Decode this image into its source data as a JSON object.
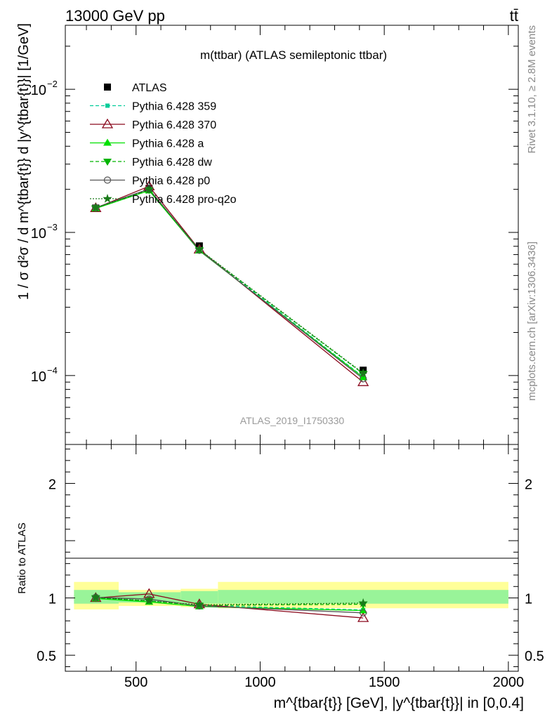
{
  "header": {
    "left": "13000 GeV pp",
    "right": "tt̄"
  },
  "side_labels": {
    "top": "Rivet 3.1.10, ≥ 2.8M events",
    "bottom": "mcplots.cern.ch [arXiv:1306.3436]"
  },
  "chart_data": [
    {
      "type": "line",
      "title": "m(ttbar) (ATLAS semileptonic ttbar)",
      "watermark": "ATLAS_2019_I1750330",
      "ylabel": "1 / σ d²σ / d m^{tbar{t}} d |y^{tbar{t}}| [1/GeV]",
      "yscale": "log",
      "xlim": [
        215,
        2040
      ],
      "ylim": [
        3.3e-05,
        0.028
      ],
      "yticks": [
        {
          "value": 0.0001,
          "label": "10",
          "exp": "−4"
        },
        {
          "value": 0.001,
          "label": "10",
          "exp": "−3"
        },
        {
          "value": 0.01,
          "label": "10",
          "exp": "−2"
        }
      ],
      "legend_position": "top-left",
      "series": [
        {
          "name": "ATLAS",
          "color": "#000000",
          "marker": "square",
          "dash": "none",
          "x": [
            337.5,
            552.5,
            755,
            1415
          ],
          "y": [
            0.00148,
            0.00203,
            0.000805,
            0.000109
          ]
        },
        {
          "name": "Pythia 6.428 359",
          "color": "#00cc99",
          "marker": "small-square",
          "dash": "dashed",
          "x": [
            337.5,
            552.5,
            755,
            1415
          ],
          "y": [
            0.00148,
            0.00198,
            0.000755,
            9.8e-05
          ]
        },
        {
          "name": "Pythia 6.428 370",
          "color": "#8b0a1e",
          "marker": "open-triangle",
          "dash": "solid",
          "x": [
            337.5,
            552.5,
            755,
            1415
          ],
          "y": [
            0.00148,
            0.0021,
            0.00076,
            9e-05
          ]
        },
        {
          "name": "Pythia 6.428 a",
          "color": "#00e000",
          "marker": "triangle",
          "dash": "solid",
          "x": [
            337.5,
            552.5,
            755,
            1415
          ],
          "y": [
            0.00147,
            0.00196,
            0.000745,
            9.7e-05
          ]
        },
        {
          "name": "Pythia 6.428 dw",
          "color": "#00b400",
          "marker": "triangle-down",
          "dash": "dashed",
          "x": [
            337.5,
            552.5,
            755,
            1415
          ],
          "y": [
            0.00148,
            0.00198,
            0.000755,
            0.000103
          ]
        },
        {
          "name": "Pythia 6.428 p0",
          "color": "#555555",
          "marker": "open-circle",
          "dash": "solid",
          "x": [
            337.5,
            552.5,
            755,
            1415
          ],
          "y": [
            0.00149,
            0.00201,
            0.00075,
            9.5e-05
          ]
        },
        {
          "name": "Pythia 6.428 pro-q2o",
          "color": "#1a7a1a",
          "marker": "star",
          "dash": "dotted",
          "x": [
            337.5,
            552.5,
            755,
            1415
          ],
          "y": [
            0.00149,
            0.00198,
            0.00076,
            0.000104
          ]
        }
      ]
    },
    {
      "type": "line",
      "ylabel": "Ratio to ATLAS",
      "xlabel": "m^{tbar{t}} [GeV], |y^{tbar{t}}| in [0,0.4]",
      "xlim": [
        215,
        2040
      ],
      "ylim": [
        0.36,
        2.34
      ],
      "xticks": [
        500,
        1000,
        1500,
        2000
      ],
      "yticks": [
        {
          "value": 0.5,
          "label": "0.5"
        },
        {
          "value": 1,
          "label": "1"
        },
        {
          "value": 2,
          "label": "2"
        }
      ],
      "bands": [
        {
          "x0": 250,
          "x1": 430,
          "inner": [
            0.95,
            1.07
          ],
          "outer": [
            0.9,
            1.14
          ]
        },
        {
          "x0": 430,
          "x1": 680,
          "inner": [
            0.96,
            1.05
          ],
          "outer": [
            0.93,
            1.07
          ]
        },
        {
          "x0": 680,
          "x1": 830,
          "inner": [
            0.95,
            1.06
          ],
          "outer": [
            0.92,
            1.08
          ]
        },
        {
          "x0": 830,
          "x1": 2000,
          "inner": [
            0.95,
            1.07
          ],
          "outer": [
            0.91,
            1.14
          ]
        }
      ],
      "reference": 1,
      "series": [
        {
          "name": "Pythia 6.428 359",
          "x": [
            337.5,
            552.5,
            755,
            1415
          ],
          "y": [
            1.0,
            0.975,
            0.935,
            0.895
          ]
        },
        {
          "name": "Pythia 6.428 370",
          "x": [
            337.5,
            552.5,
            755,
            1415
          ],
          "y": [
            1.0,
            1.035,
            0.945,
            0.825
          ]
        },
        {
          "name": "Pythia 6.428 a",
          "x": [
            337.5,
            552.5,
            755,
            1415
          ],
          "y": [
            0.995,
            0.965,
            0.925,
            0.89
          ]
        },
        {
          "name": "Pythia 6.428 dw",
          "x": [
            337.5,
            552.5,
            755,
            1415
          ],
          "y": [
            1.0,
            0.975,
            0.935,
            0.945
          ]
        },
        {
          "name": "Pythia 6.428 p0",
          "x": [
            337.5,
            552.5,
            755,
            1415
          ],
          "y": [
            1.005,
            0.99,
            0.93,
            0.87
          ]
        },
        {
          "name": "Pythia 6.428 pro-q2o",
          "x": [
            337.5,
            552.5,
            755,
            1415
          ],
          "y": [
            1.005,
            0.975,
            0.94,
            0.955
          ]
        }
      ]
    }
  ]
}
